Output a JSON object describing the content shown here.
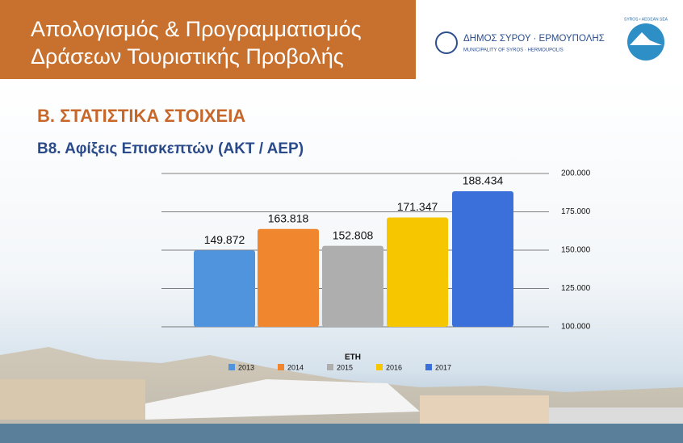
{
  "slide": {
    "title_lines": [
      "Απολογισμός & Προγραμματισμός",
      "Δράσεων Τουριστικής Προβολής"
    ],
    "logo_name": "ΔΗΜΟΣ ΣΥΡΟΥ · ΕΡΜΟΥΠΟΛΗΣ",
    "logo_sub": "MUNICIPALITY OF SYROS · HERMOUPOLIS",
    "badge": "SYROS • AEGEAN SEA",
    "section_title": "Β. ΣΤΑΤΙΣΤΙΚΑ ΣΤΟΙΧΕΙΑ",
    "subtitle": "Β8. Αφίξεις Επισκεπτών (ΑΚΤ / ΑΕΡ)"
  },
  "chart_data": {
    "type": "bar",
    "categories": [
      "2013",
      "2014",
      "2015",
      "2016",
      "2017"
    ],
    "values": [
      149872,
      163818,
      152808,
      171347,
      188434
    ],
    "value_labels": [
      "149.872",
      "163.818",
      "152.808",
      "171.347",
      "188.434"
    ],
    "colors": [
      "#4f94dc",
      "#f0872e",
      "#aeaeae",
      "#f6c700",
      "#3b6fd9"
    ],
    "legend_title": "ΕΤΗ",
    "ylim": [
      100000,
      200000
    ],
    "yticks": [
      {
        "value": 100000,
        "label": "100.000"
      },
      {
        "value": 125000,
        "label": "125.000"
      },
      {
        "value": 150000,
        "label": "150.000"
      },
      {
        "value": 175000,
        "label": "175.000"
      },
      {
        "value": 200000,
        "label": "200.000"
      }
    ],
    "grid": true
  }
}
